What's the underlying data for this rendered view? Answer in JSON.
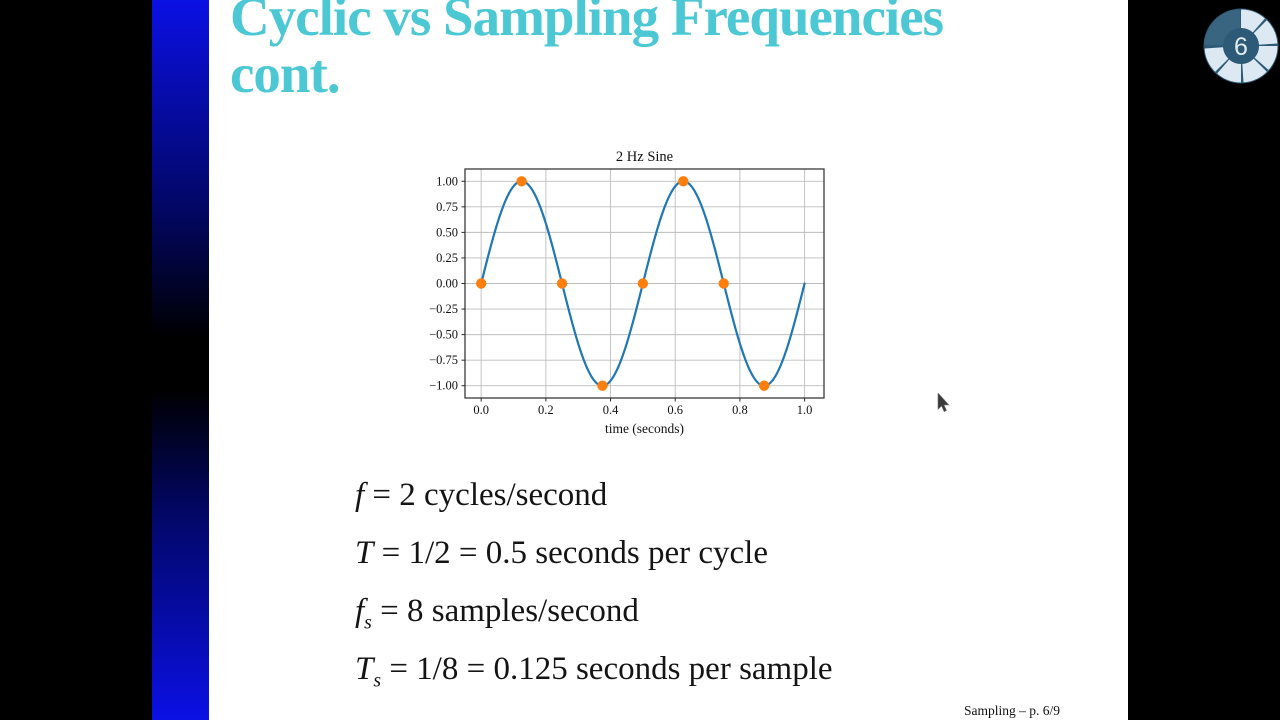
{
  "slide": {
    "title_line1": "Cyclic vs Sampling Frequencies",
    "title_line2": "cont.",
    "footer": "Sampling – p. 6/9"
  },
  "slide_indicator": {
    "number": "6",
    "segments_lit": 6
  },
  "equations": {
    "lines": [
      {
        "var": "f",
        "sub": "",
        "rest": " = 2 cycles/second"
      },
      {
        "var": "T",
        "sub": "",
        "rest": " = 1/2 = 0.5 seconds per cycle"
      },
      {
        "var": "f",
        "sub": "s",
        "rest": " = 8 samples/second"
      },
      {
        "var": "T",
        "sub": "s",
        "rest": " = 1/8 = 0.125 seconds per sample"
      }
    ]
  },
  "chart_data": {
    "type": "line",
    "title": "2 Hz Sine",
    "xlabel": "time (seconds)",
    "ylabel": "",
    "xlim": [
      -0.05,
      1.06
    ],
    "ylim": [
      -1.12,
      1.12
    ],
    "grid": true,
    "legend": "none",
    "x_ticks": {
      "values": [
        0,
        0.2,
        0.4,
        0.6,
        0.8,
        1.0
      ],
      "labels": [
        "0.0",
        "0.2",
        "0.4",
        "0.6",
        "0.8",
        "1.0"
      ]
    },
    "y_ticks": {
      "values": [
        1,
        0.75,
        0.5,
        0.25,
        0,
        -0.25,
        -0.5,
        -0.75,
        -1
      ],
      "labels": [
        "1.00",
        "0.75",
        "0.50",
        "0.25",
        "0.00",
        "−0.25",
        "−0.50",
        "−0.75",
        "−1.00"
      ]
    },
    "series": [
      {
        "name": "2 Hz sine wave",
        "kind": "line",
        "color": "#1f77b4",
        "signal": {
          "shape": "sine",
          "frequency_hz": 2,
          "amplitude": 1,
          "t_start": 0,
          "t_end": 1
        }
      },
      {
        "name": "samples at 8 samples/second",
        "kind": "scatter",
        "color": "#ff7f0e",
        "x": [
          0,
          0.125,
          0.25,
          0.375,
          0.5,
          0.625,
          0.75,
          0.875
        ],
        "y": [
          0,
          1,
          0,
          -1,
          0,
          1,
          0,
          -1
        ]
      }
    ]
  }
}
